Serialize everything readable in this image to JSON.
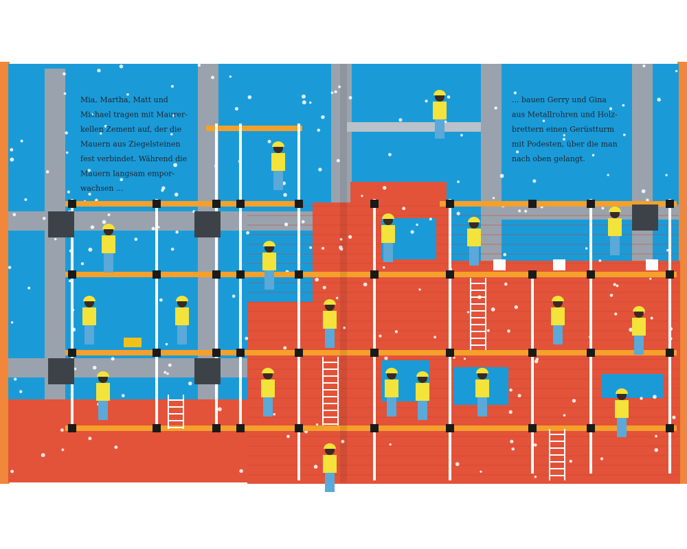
{
  "left_text": {
    "lines": [
      "Mia, Martha, Matt und",
      "Michael tragen mit Maurer-",
      "kellen Zement auf, der die",
      "Mauern aus Ziegelsteinen",
      "fest verbindet. Während die",
      "Mauern langsam empor-",
      "wachsen ..."
    ]
  },
  "right_text": {
    "lines": [
      "... bauen Gerry und Gina",
      "aus Metallrohren und Holz-",
      "brettern einen Gerüstturm",
      "mit Podesten, über die man",
      "nach oben gelangt."
    ]
  }
}
